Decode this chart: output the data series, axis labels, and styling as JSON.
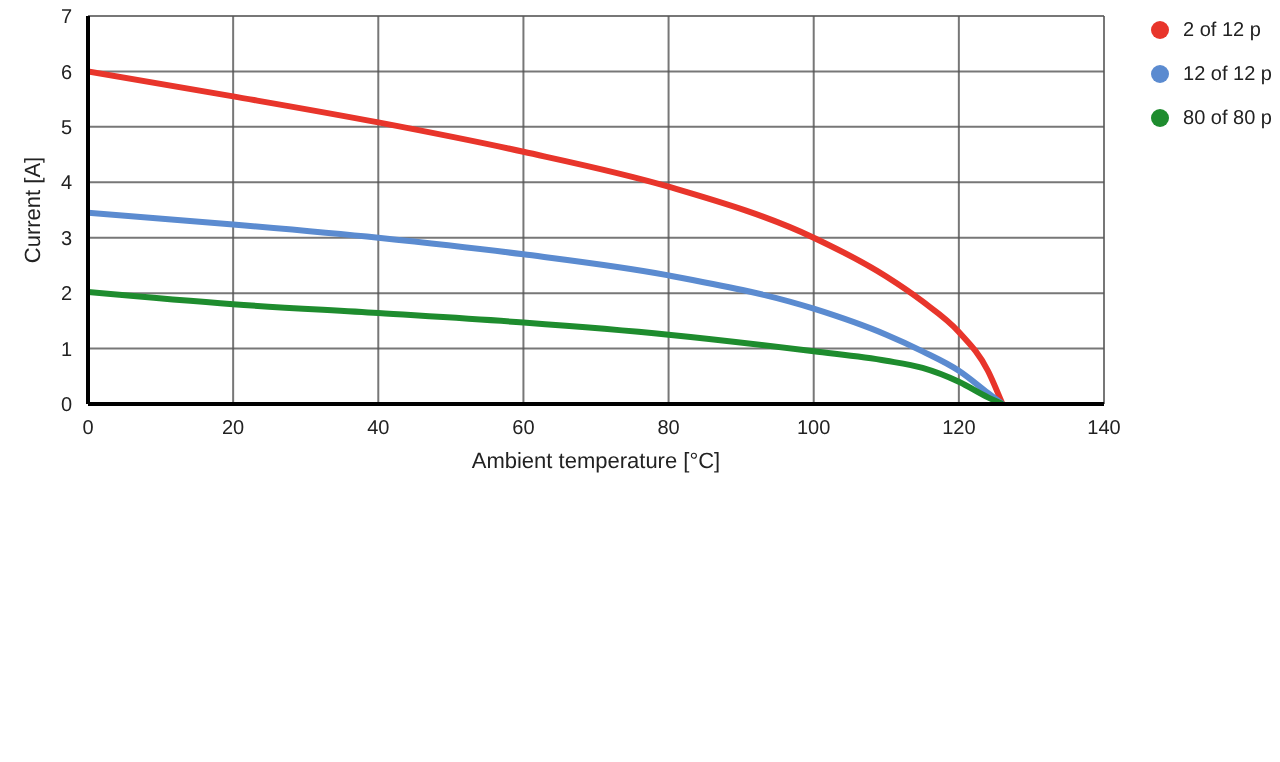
{
  "chart_data": {
    "type": "line",
    "xlabel": "Ambient temperature [°C]",
    "ylabel": "Current [A]",
    "x": [
      0,
      20,
      40,
      60,
      80,
      100,
      110,
      115,
      120,
      124,
      126
    ],
    "series": [
      {
        "name": "2 of 12 p",
        "color": "#e8352b",
        "values": [
          6,
          5.55,
          5.08,
          4.55,
          3.92,
          3.0,
          2.3,
          1.85,
          1.3,
          0.6,
          0
        ]
      },
      {
        "name": "12 of 12 p",
        "color": "#5b8bd0",
        "values": [
          3.45,
          3.24,
          3.0,
          2.7,
          2.32,
          1.72,
          1.25,
          0.95,
          0.6,
          0.2,
          0
        ]
      },
      {
        "name": "80 of 80 p",
        "color": "#1e8c2e",
        "values": [
          2.02,
          1.8,
          1.64,
          1.47,
          1.25,
          0.95,
          0.78,
          0.65,
          0.4,
          0.12,
          0
        ]
      }
    ],
    "xlim": [
      0,
      140
    ],
    "xticks": [
      0,
      20,
      40,
      60,
      80,
      100,
      120,
      140
    ],
    "ylim": [
      0,
      7
    ],
    "yticks": [
      0,
      1,
      2,
      3,
      4,
      5,
      6,
      7
    ],
    "grid": true,
    "legend": "top right",
    "marker": "none",
    "line_style": "solid"
  }
}
